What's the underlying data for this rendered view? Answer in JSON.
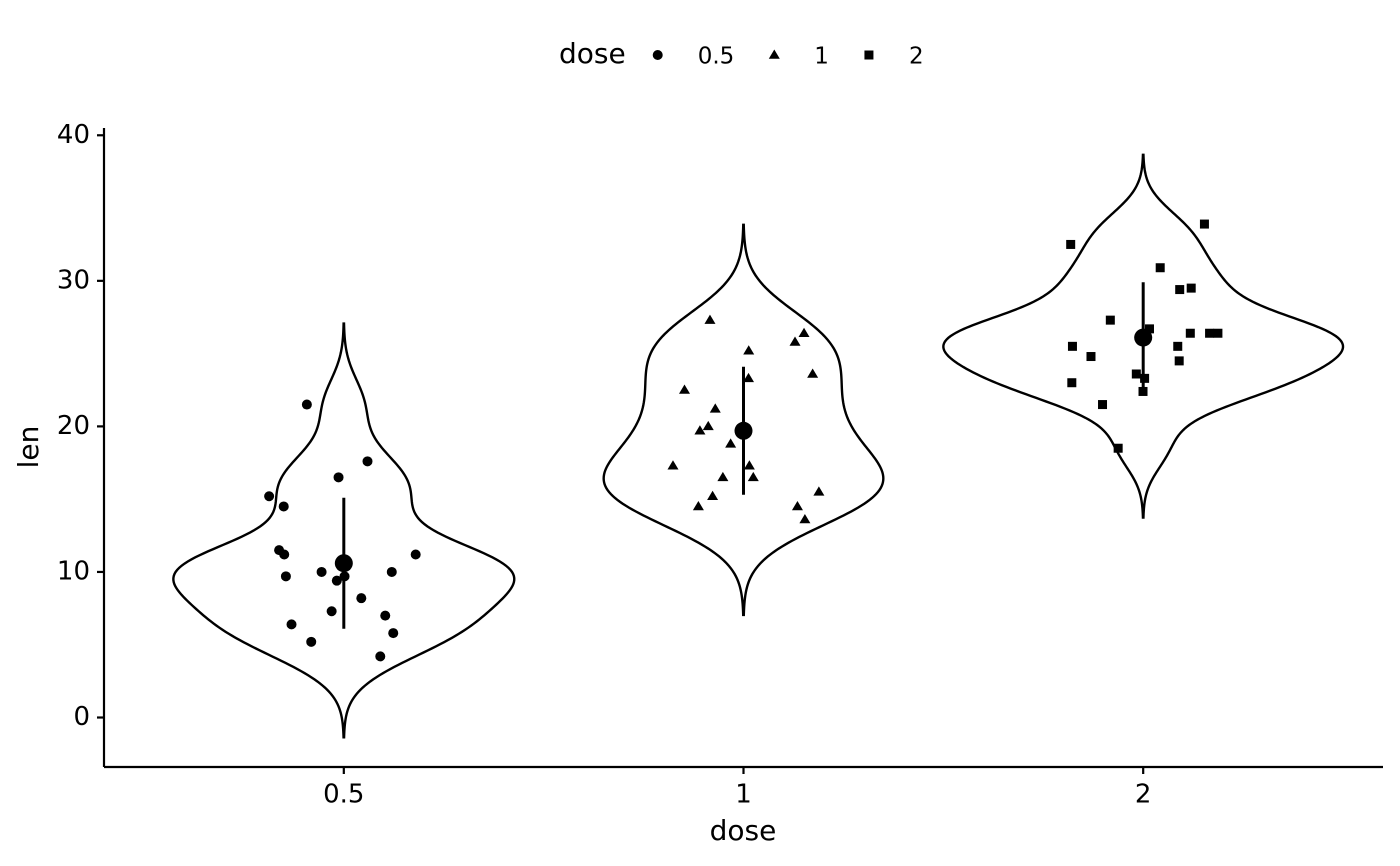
{
  "chart_data": {
    "type": "violin",
    "x_label": "dose",
    "y_label": "len",
    "legend_title": "dose",
    "legend_position": "top",
    "categories": [
      "0.5",
      "1",
      "2"
    ],
    "ylim": [
      -3.4,
      40.5
    ],
    "yticks": [
      0,
      10,
      20,
      30,
      40
    ],
    "color": "#000000",
    "series": [
      {
        "name": "0.5",
        "shape": "circle",
        "mean": 10.6,
        "sd": 4.5,
        "values": [
          4.2,
          11.5,
          7.3,
          5.8,
          6.4,
          10,
          11.2,
          11.2,
          5.2,
          7,
          15.2,
          21.5,
          17.6,
          9.7,
          14.5,
          10,
          8.2,
          9.4,
          16.5,
          9.7
        ]
      },
      {
        "name": "1",
        "shape": "triangle",
        "mean": 19.7,
        "sd": 4.4,
        "values": [
          16.5,
          16.5,
          15.2,
          17.3,
          22.5,
          17.3,
          13.6,
          14.5,
          18.8,
          15.5,
          19.7,
          23.3,
          23.6,
          26.4,
          20,
          25.2,
          25.8,
          21.2,
          14.5,
          27.3
        ]
      },
      {
        "name": "2",
        "shape": "square",
        "mean": 26.1,
        "sd": 3.8,
        "values": [
          23.6,
          18.5,
          33.9,
          25.5,
          26.4,
          32.5,
          26.7,
          21.5,
          23.3,
          29.5,
          25.5,
          26.4,
          22.4,
          24.5,
          24.8,
          30.9,
          26.4,
          27.3,
          29.4,
          23
        ]
      }
    ]
  }
}
